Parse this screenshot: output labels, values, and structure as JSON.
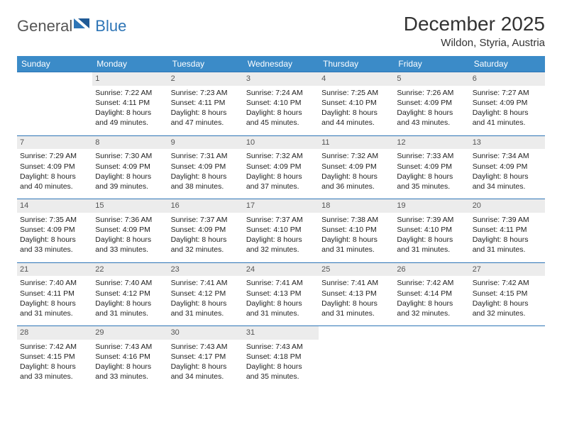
{
  "logo": {
    "word1": "General",
    "word2": "Blue"
  },
  "title": "December 2025",
  "location": "Wildon, Styria, Austria",
  "header_color": "#3b8bc8",
  "border_color": "#2e75b6",
  "daynum_bg": "#ececec",
  "weekdays": [
    "Sunday",
    "Monday",
    "Tuesday",
    "Wednesday",
    "Thursday",
    "Friday",
    "Saturday"
  ],
  "weeks": [
    [
      null,
      {
        "n": "1",
        "sr": "7:22 AM",
        "ss": "4:11 PM",
        "dl": "8 hours and 49 minutes."
      },
      {
        "n": "2",
        "sr": "7:23 AM",
        "ss": "4:11 PM",
        "dl": "8 hours and 47 minutes."
      },
      {
        "n": "3",
        "sr": "7:24 AM",
        "ss": "4:10 PM",
        "dl": "8 hours and 45 minutes."
      },
      {
        "n": "4",
        "sr": "7:25 AM",
        "ss": "4:10 PM",
        "dl": "8 hours and 44 minutes."
      },
      {
        "n": "5",
        "sr": "7:26 AM",
        "ss": "4:09 PM",
        "dl": "8 hours and 43 minutes."
      },
      {
        "n": "6",
        "sr": "7:27 AM",
        "ss": "4:09 PM",
        "dl": "8 hours and 41 minutes."
      }
    ],
    [
      {
        "n": "7",
        "sr": "7:29 AM",
        "ss": "4:09 PM",
        "dl": "8 hours and 40 minutes."
      },
      {
        "n": "8",
        "sr": "7:30 AM",
        "ss": "4:09 PM",
        "dl": "8 hours and 39 minutes."
      },
      {
        "n": "9",
        "sr": "7:31 AM",
        "ss": "4:09 PM",
        "dl": "8 hours and 38 minutes."
      },
      {
        "n": "10",
        "sr": "7:32 AM",
        "ss": "4:09 PM",
        "dl": "8 hours and 37 minutes."
      },
      {
        "n": "11",
        "sr": "7:32 AM",
        "ss": "4:09 PM",
        "dl": "8 hours and 36 minutes."
      },
      {
        "n": "12",
        "sr": "7:33 AM",
        "ss": "4:09 PM",
        "dl": "8 hours and 35 minutes."
      },
      {
        "n": "13",
        "sr": "7:34 AM",
        "ss": "4:09 PM",
        "dl": "8 hours and 34 minutes."
      }
    ],
    [
      {
        "n": "14",
        "sr": "7:35 AM",
        "ss": "4:09 PM",
        "dl": "8 hours and 33 minutes."
      },
      {
        "n": "15",
        "sr": "7:36 AM",
        "ss": "4:09 PM",
        "dl": "8 hours and 33 minutes."
      },
      {
        "n": "16",
        "sr": "7:37 AM",
        "ss": "4:09 PM",
        "dl": "8 hours and 32 minutes."
      },
      {
        "n": "17",
        "sr": "7:37 AM",
        "ss": "4:10 PM",
        "dl": "8 hours and 32 minutes."
      },
      {
        "n": "18",
        "sr": "7:38 AM",
        "ss": "4:10 PM",
        "dl": "8 hours and 31 minutes."
      },
      {
        "n": "19",
        "sr": "7:39 AM",
        "ss": "4:10 PM",
        "dl": "8 hours and 31 minutes."
      },
      {
        "n": "20",
        "sr": "7:39 AM",
        "ss": "4:11 PM",
        "dl": "8 hours and 31 minutes."
      }
    ],
    [
      {
        "n": "21",
        "sr": "7:40 AM",
        "ss": "4:11 PM",
        "dl": "8 hours and 31 minutes."
      },
      {
        "n": "22",
        "sr": "7:40 AM",
        "ss": "4:12 PM",
        "dl": "8 hours and 31 minutes."
      },
      {
        "n": "23",
        "sr": "7:41 AM",
        "ss": "4:12 PM",
        "dl": "8 hours and 31 minutes."
      },
      {
        "n": "24",
        "sr": "7:41 AM",
        "ss": "4:13 PM",
        "dl": "8 hours and 31 minutes."
      },
      {
        "n": "25",
        "sr": "7:41 AM",
        "ss": "4:13 PM",
        "dl": "8 hours and 31 minutes."
      },
      {
        "n": "26",
        "sr": "7:42 AM",
        "ss": "4:14 PM",
        "dl": "8 hours and 32 minutes."
      },
      {
        "n": "27",
        "sr": "7:42 AM",
        "ss": "4:15 PM",
        "dl": "8 hours and 32 minutes."
      }
    ],
    [
      {
        "n": "28",
        "sr": "7:42 AM",
        "ss": "4:15 PM",
        "dl": "8 hours and 33 minutes."
      },
      {
        "n": "29",
        "sr": "7:43 AM",
        "ss": "4:16 PM",
        "dl": "8 hours and 33 minutes."
      },
      {
        "n": "30",
        "sr": "7:43 AM",
        "ss": "4:17 PM",
        "dl": "8 hours and 34 minutes."
      },
      {
        "n": "31",
        "sr": "7:43 AM",
        "ss": "4:18 PM",
        "dl": "8 hours and 35 minutes."
      },
      null,
      null,
      null
    ]
  ],
  "labels": {
    "sunrise": "Sunrise:",
    "sunset": "Sunset:",
    "daylight": "Daylight:"
  }
}
